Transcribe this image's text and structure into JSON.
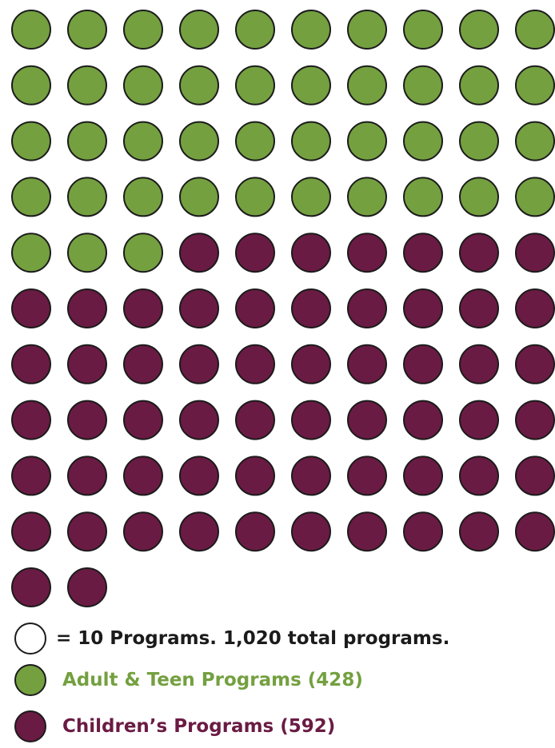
{
  "chart_data": {
    "type": "pictograph",
    "unit_label": "= 10 Programs. 1,020 total programs.",
    "units_per_icon": 10,
    "total": 1020,
    "categories": [
      {
        "name": "Adult & Teen Programs (428)",
        "value": 428,
        "icons": 43,
        "color": "#74a040"
      },
      {
        "name": "Children’s Programs (592)",
        "value": 592,
        "icons": 59,
        "color": "#6a1b43"
      }
    ],
    "icons_per_row": 10
  }
}
